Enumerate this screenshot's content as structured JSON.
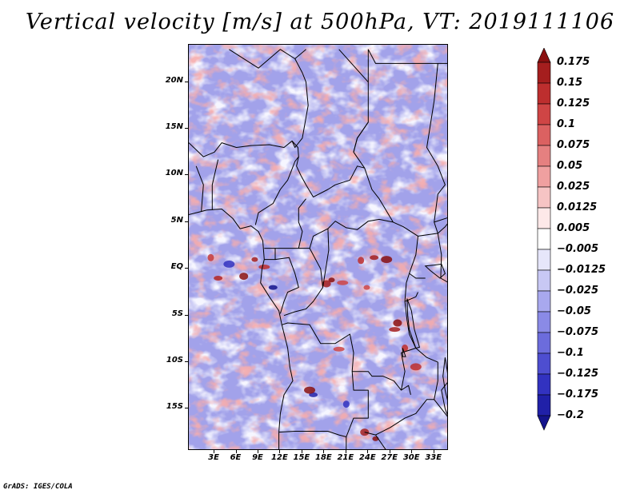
{
  "title": "Vertical velocity [m/s] at 500hPa, VT: 2019111106",
  "map": {
    "lat_range": [
      -19.5,
      24.0
    ],
    "lon_range": [
      -0.5,
      35.0
    ],
    "lat_ticks": [
      {
        "value": 20,
        "label": "20N"
      },
      {
        "value": 15,
        "label": "15N"
      },
      {
        "value": 10,
        "label": "10N"
      },
      {
        "value": 5,
        "label": "5N"
      },
      {
        "value": 0,
        "label": "EQ"
      },
      {
        "value": -5,
        "label": "5S"
      },
      {
        "value": -10,
        "label": "10S"
      },
      {
        "value": -15,
        "label": "15S"
      }
    ],
    "lon_ticks": [
      {
        "value": 3,
        "label": "3E"
      },
      {
        "value": 6,
        "label": "6E"
      },
      {
        "value": 9,
        "label": "9E"
      },
      {
        "value": 12,
        "label": "12E"
      },
      {
        "value": 15,
        "label": "15E"
      },
      {
        "value": 18,
        "label": "18E"
      },
      {
        "value": 21,
        "label": "21E"
      },
      {
        "value": 24,
        "label": "24E"
      },
      {
        "value": 27,
        "label": "27E"
      },
      {
        "value": 30,
        "label": "30E"
      },
      {
        "value": 33,
        "label": "33E"
      }
    ]
  },
  "colorbar": {
    "labels": [
      "0.175",
      "0.15",
      "0.125",
      "0.1",
      "0.075",
      "0.05",
      "0.025",
      "0.0125",
      "0.005",
      "−0.005",
      "−0.0125",
      "−0.025",
      "−0.05",
      "−0.075",
      "−0.1",
      "−0.125",
      "−0.175",
      "−0.2"
    ],
    "colors": [
      "#8a1010",
      "#a51e1e",
      "#bd2e2e",
      "#cf4545",
      "#db6161",
      "#e58080",
      "#efa0a0",
      "#f6c4c4",
      "#fde8e8",
      "#ffffff",
      "#e6e6fa",
      "#c8c8f4",
      "#a8a8ee",
      "#8a8ae6",
      "#6c6cdc",
      "#4e4ed0",
      "#3232c0",
      "#2020a8",
      "#14148c"
    ]
  },
  "footer": "GrADS: IGES/COLA"
}
